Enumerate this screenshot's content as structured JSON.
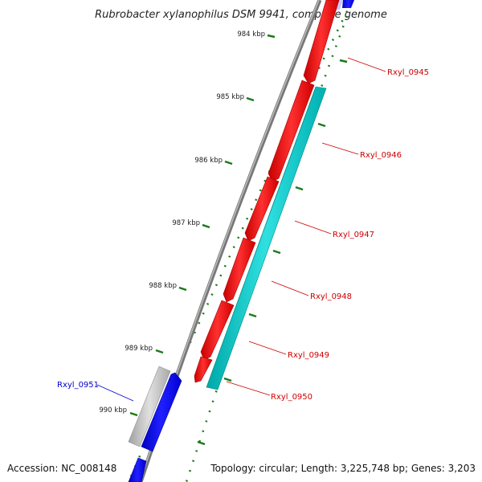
{
  "title": "Rubrobacter xylanophilus DSM 9941, complete genome",
  "accession": "Accession: NC_008148",
  "summary": "Topology: circular; Length: 3,225,748 bp; Genes: 3,203",
  "ruler_labels": [
    "984 kbp",
    "985 kbp",
    "986 kbp",
    "987 kbp",
    "988 kbp",
    "989 kbp",
    "990 kbp"
  ],
  "genes": [
    {
      "id": "Rxyl_0945",
      "strand": "forward",
      "color": "#ff0000"
    },
    {
      "id": "Rxyl_0946",
      "strand": "forward",
      "color": "#ff0000"
    },
    {
      "id": "Rxyl_0947",
      "strand": "forward",
      "color": "#ff0000"
    },
    {
      "id": "Rxyl_0948",
      "strand": "forward",
      "color": "#ff0000"
    },
    {
      "id": "Rxyl_0949",
      "strand": "forward",
      "color": "#ff0000"
    },
    {
      "id": "Rxyl_0950",
      "strand": "forward",
      "color": "#00c8c8"
    },
    {
      "id": "Rxyl_0951",
      "strand": "reverse",
      "color": "#0000ff"
    }
  ],
  "colors": {
    "forward_label": "#cc0000",
    "reverse_label": "#0000cc",
    "tick": "#1a7a1a",
    "backbone": "#888888",
    "grey_feature": "#bbbbbb"
  }
}
